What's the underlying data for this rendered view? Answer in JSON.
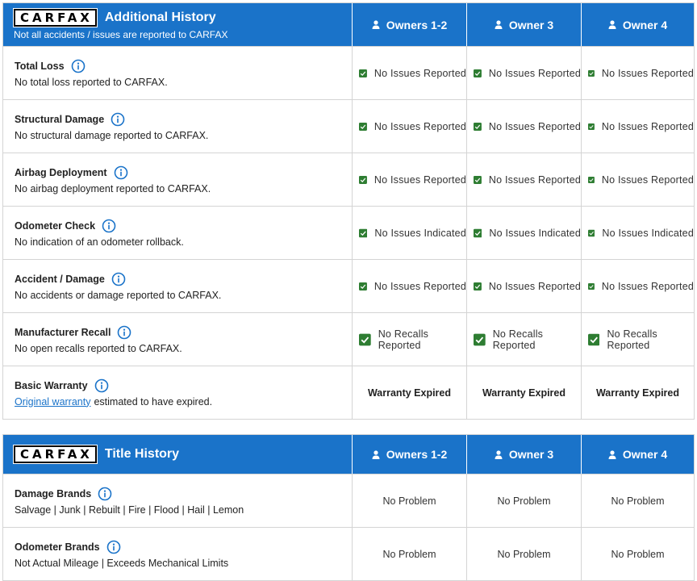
{
  "sections": [
    {
      "logo": "CARFAX",
      "title": "Additional History",
      "subtitle": "Not all accidents / issues are reported to CARFAX",
      "columns": [
        "Owners 1-2",
        "Owner 3",
        "Owner 4"
      ],
      "rows": [
        {
          "label": "Total Loss",
          "description": "No total loss reported to CARFAX.",
          "cell_style": "check",
          "cells": [
            "No Issues Reported",
            "No Issues Reported",
            "No Issues Reported"
          ]
        },
        {
          "label": "Structural Damage",
          "description": "No structural damage reported to CARFAX.",
          "cell_style": "check",
          "cells": [
            "No Issues Reported",
            "No Issues Reported",
            "No Issues Reported"
          ]
        },
        {
          "label": "Airbag Deployment",
          "description": "No airbag deployment reported to CARFAX.",
          "cell_style": "check",
          "cells": [
            "No Issues Reported",
            "No Issues Reported",
            "No Issues Reported"
          ]
        },
        {
          "label": "Odometer Check",
          "description": "No indication of an odometer rollback.",
          "cell_style": "check",
          "cells": [
            "No Issues Indicated",
            "No Issues Indicated",
            "No Issues Indicated"
          ]
        },
        {
          "label": "Accident / Damage",
          "description": "No accidents or damage reported to CARFAX.",
          "cell_style": "check",
          "cells": [
            "No Issues Reported",
            "No Issues Reported",
            "No Issues Reported"
          ]
        },
        {
          "label": "Manufacturer Recall",
          "description": "No open recalls reported to CARFAX.",
          "cell_style": "check",
          "cells": [
            "No Recalls Reported",
            "No Recalls Reported",
            "No Recalls Reported"
          ]
        },
        {
          "label": "Basic Warranty",
          "description_link": "Original warranty",
          "description": "estimated to have expired.",
          "cell_style": "bold",
          "cells": [
            "Warranty Expired",
            "Warranty Expired",
            "Warranty Expired"
          ]
        }
      ]
    },
    {
      "logo": "CARFAX",
      "title": "Title History",
      "columns": [
        "Owners 1-2",
        "Owner 3",
        "Owner 4"
      ],
      "rows": [
        {
          "label": "Damage Brands",
          "description": "Salvage | Junk | Rebuilt | Fire | Flood | Hail | Lemon",
          "cell_style": "plain",
          "cells": [
            "No Problem",
            "No Problem",
            "No Problem"
          ]
        },
        {
          "label": "Odometer Brands",
          "description": "Not Actual Mileage | Exceeds Mechanical Limits",
          "cell_style": "plain",
          "cells": [
            "No Problem",
            "No Problem",
            "No Problem"
          ]
        }
      ]
    }
  ]
}
